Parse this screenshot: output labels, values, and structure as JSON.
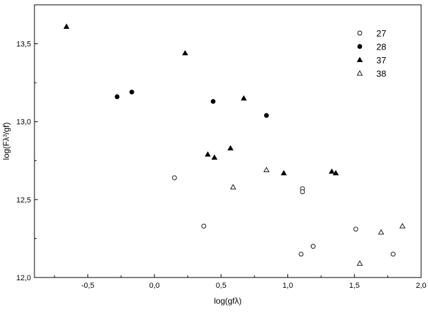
{
  "chart_data": {
    "type": "scatter",
    "xlabel": "log(gfλ)",
    "ylabel": "log(Fλ³/gf)",
    "xlim": [
      -0.9,
      2.0
    ],
    "ylim": [
      12.0,
      13.75
    ],
    "xticks": [
      -0.5,
      0.0,
      0.5,
      1.0,
      1.5,
      2.0
    ],
    "xtick_labels": [
      "-0,5",
      "0,0",
      "0,5",
      "1,0",
      "1,5",
      "2,0"
    ],
    "yticks": [
      12.0,
      12.5,
      13.0,
      13.5
    ],
    "ytick_labels": [
      "12,0",
      "12,5",
      "13,0",
      "13,5"
    ],
    "grid": false,
    "legend_position": "top-right",
    "series": [
      {
        "name": "27",
        "marker": "circle-open",
        "points": [
          {
            "x": 0.15,
            "y": 12.64
          },
          {
            "x": 0.37,
            "y": 12.33
          },
          {
            "x": 1.1,
            "y": 12.15
          },
          {
            "x": 1.11,
            "y": 12.57
          },
          {
            "x": 1.11,
            "y": 12.55
          },
          {
            "x": 1.19,
            "y": 12.2
          },
          {
            "x": 1.51,
            "y": 12.31
          },
          {
            "x": 1.79,
            "y": 12.15
          }
        ]
      },
      {
        "name": "28",
        "marker": "circle-filled",
        "points": [
          {
            "x": -0.28,
            "y": 13.16
          },
          {
            "x": -0.17,
            "y": 13.19
          },
          {
            "x": 0.44,
            "y": 13.13
          },
          {
            "x": 0.84,
            "y": 13.04
          }
        ]
      },
      {
        "name": "37",
        "marker": "triangle-filled",
        "points": [
          {
            "x": -0.66,
            "y": 13.61
          },
          {
            "x": 0.23,
            "y": 13.44
          },
          {
            "x": 0.4,
            "y": 12.79
          },
          {
            "x": 0.45,
            "y": 12.77
          },
          {
            "x": 0.57,
            "y": 12.83
          },
          {
            "x": 0.67,
            "y": 13.15
          },
          {
            "x": 0.97,
            "y": 12.67
          },
          {
            "x": 1.33,
            "y": 12.68
          },
          {
            "x": 1.36,
            "y": 12.67
          }
        ]
      },
      {
        "name": "38",
        "marker": "triangle-open",
        "points": [
          {
            "x": 0.59,
            "y": 12.58
          },
          {
            "x": 0.84,
            "y": 12.69
          },
          {
            "x": 1.54,
            "y": 12.09
          },
          {
            "x": 1.7,
            "y": 12.29
          },
          {
            "x": 1.86,
            "y": 12.33
          }
        ]
      }
    ]
  }
}
